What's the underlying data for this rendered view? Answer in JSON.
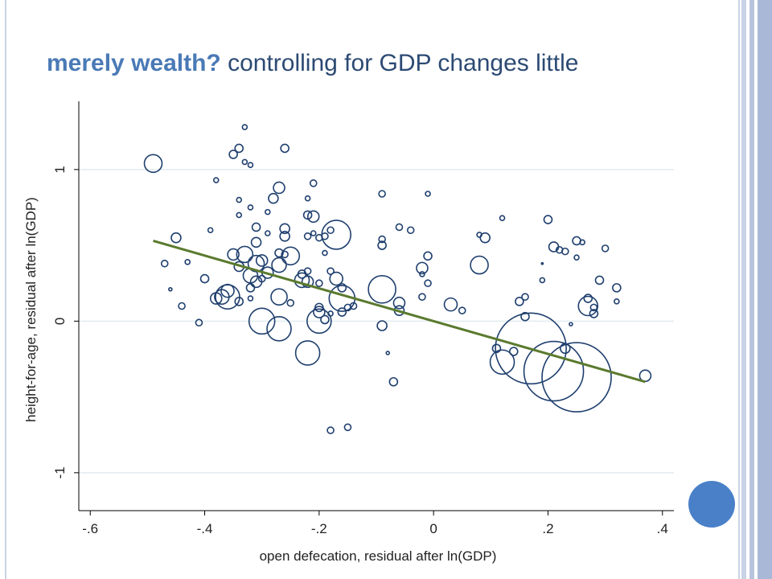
{
  "title": {
    "lead": "merely wealth?",
    "rest": " controlling for GDP changes little"
  },
  "colors": {
    "title_lead": "#4a7ab6",
    "title_rest": "#2c4a73",
    "marker": "#1f3f6e",
    "fit_line": "#5a7a2e",
    "grid": "#e3ecef",
    "accent_circle": "#4a80c8"
  },
  "chart_data": {
    "type": "scatter",
    "xlabel": "open defecation, residual after ln(GDP)",
    "ylabel": "height-for-age, residual after ln(GDP)",
    "xlim": [
      -0.62,
      0.42
    ],
    "ylim": [
      -1.25,
      1.45
    ],
    "x_ticks": [
      -0.6,
      -0.4,
      -0.2,
      0,
      0.2,
      0.4
    ],
    "x_tick_labels": [
      "-.6",
      "-.4",
      "-.2",
      "0",
      ".2",
      ".4"
    ],
    "y_ticks": [
      -1,
      0,
      1
    ],
    "y_tick_labels": [
      "-1",
      "0",
      "1"
    ],
    "grid": "horizontal",
    "marker": "hollow circle, sized by weight",
    "fit_line": {
      "x": [
        -0.49,
        0.37
      ],
      "y": [
        0.53,
        -0.4
      ]
    },
    "points": [
      {
        "x": -0.49,
        "y": 1.04,
        "s": 11
      },
      {
        "x": -0.47,
        "y": 0.38,
        "s": 4
      },
      {
        "x": -0.46,
        "y": 0.21,
        "s": 2
      },
      {
        "x": -0.45,
        "y": 0.55,
        "s": 6
      },
      {
        "x": -0.44,
        "y": 0.1,
        "s": 4
      },
      {
        "x": -0.43,
        "y": 0.39,
        "s": 3
      },
      {
        "x": -0.41,
        "y": -0.01,
        "s": 4
      },
      {
        "x": -0.4,
        "y": 0.28,
        "s": 5
      },
      {
        "x": -0.39,
        "y": 0.6,
        "s": 3
      },
      {
        "x": -0.38,
        "y": 0.15,
        "s": 7
      },
      {
        "x": -0.38,
        "y": 0.93,
        "s": 3
      },
      {
        "x": -0.37,
        "y": 0.16,
        "s": 9
      },
      {
        "x": -0.36,
        "y": 0.16,
        "s": 15
      },
      {
        "x": -0.36,
        "y": 0.2,
        "s": 8
      },
      {
        "x": -0.35,
        "y": 1.1,
        "s": 5
      },
      {
        "x": -0.35,
        "y": 0.44,
        "s": 7
      },
      {
        "x": -0.34,
        "y": 1.14,
        "s": 5
      },
      {
        "x": -0.34,
        "y": 0.36,
        "s": 6
      },
      {
        "x": -0.34,
        "y": 0.13,
        "s": 5
      },
      {
        "x": -0.34,
        "y": 0.7,
        "s": 3
      },
      {
        "x": -0.34,
        "y": 0.8,
        "s": 3
      },
      {
        "x": -0.33,
        "y": 1.28,
        "s": 3
      },
      {
        "x": -0.33,
        "y": 1.05,
        "s": 3
      },
      {
        "x": -0.33,
        "y": 0.44,
        "s": 10
      },
      {
        "x": -0.32,
        "y": 0.3,
        "s": 9
      },
      {
        "x": -0.32,
        "y": 0.22,
        "s": 5
      },
      {
        "x": -0.32,
        "y": 0.15,
        "s": 3
      },
      {
        "x": -0.32,
        "y": 1.03,
        "s": 3
      },
      {
        "x": -0.32,
        "y": 0.75,
        "s": 3
      },
      {
        "x": -0.31,
        "y": 0.62,
        "s": 5
      },
      {
        "x": -0.31,
        "y": 0.52,
        "s": 6
      },
      {
        "x": -0.31,
        "y": 0.38,
        "s": 10
      },
      {
        "x": -0.31,
        "y": 0.26,
        "s": 7
      },
      {
        "x": -0.3,
        "y": 0.4,
        "s": 7
      },
      {
        "x": -0.3,
        "y": 0.28,
        "s": 4
      },
      {
        "x": -0.3,
        "y": 0.0,
        "s": 16
      },
      {
        "x": -0.29,
        "y": 0.32,
        "s": 7
      },
      {
        "x": -0.29,
        "y": 0.58,
        "s": 3
      },
      {
        "x": -0.29,
        "y": 0.72,
        "s": 3
      },
      {
        "x": -0.28,
        "y": 0.81,
        "s": 6
      },
      {
        "x": -0.27,
        "y": 0.88,
        "s": 7
      },
      {
        "x": -0.27,
        "y": 0.45,
        "s": 5
      },
      {
        "x": -0.27,
        "y": 0.37,
        "s": 9
      },
      {
        "x": -0.27,
        "y": 0.16,
        "s": 10
      },
      {
        "x": -0.27,
        "y": -0.05,
        "s": 15
      },
      {
        "x": -0.26,
        "y": 1.14,
        "s": 5
      },
      {
        "x": -0.26,
        "y": 0.61,
        "s": 6
      },
      {
        "x": -0.26,
        "y": 0.44,
        "s": 4
      },
      {
        "x": -0.26,
        "y": 0.56,
        "s": 6
      },
      {
        "x": -0.25,
        "y": 0.43,
        "s": 11
      },
      {
        "x": -0.25,
        "y": 0.12,
        "s": 4
      },
      {
        "x": -0.23,
        "y": 0.27,
        "s": 9
      },
      {
        "x": -0.23,
        "y": 0.31,
        "s": 5
      },
      {
        "x": -0.22,
        "y": -0.21,
        "s": 15
      },
      {
        "x": -0.22,
        "y": 0.26,
        "s": 7
      },
      {
        "x": -0.22,
        "y": 0.33,
        "s": 4
      },
      {
        "x": -0.22,
        "y": 0.7,
        "s": 5
      },
      {
        "x": -0.22,
        "y": 0.56,
        "s": 4
      },
      {
        "x": -0.22,
        "y": 0.81,
        "s": 3
      },
      {
        "x": -0.21,
        "y": 0.69,
        "s": 7
      },
      {
        "x": -0.21,
        "y": 0.91,
        "s": 4
      },
      {
        "x": -0.21,
        "y": 0.58,
        "s": 3
      },
      {
        "x": -0.2,
        "y": 0.55,
        "s": 4
      },
      {
        "x": -0.2,
        "y": 0.25,
        "s": 4
      },
      {
        "x": -0.2,
        "y": 0.0,
        "s": 15
      },
      {
        "x": -0.2,
        "y": 0.06,
        "s": 7
      },
      {
        "x": -0.2,
        "y": 0.09,
        "s": 5
      },
      {
        "x": -0.19,
        "y": 0.01,
        "s": 5
      },
      {
        "x": -0.19,
        "y": 0.56,
        "s": 4
      },
      {
        "x": -0.19,
        "y": 0.45,
        "s": 3
      },
      {
        "x": -0.18,
        "y": -0.72,
        "s": 4
      },
      {
        "x": -0.18,
        "y": 0.6,
        "s": 4
      },
      {
        "x": -0.18,
        "y": 0.33,
        "s": 4
      },
      {
        "x": -0.18,
        "y": 0.05,
        "s": 3
      },
      {
        "x": -0.17,
        "y": 0.57,
        "s": 18
      },
      {
        "x": -0.17,
        "y": 0.28,
        "s": 8
      },
      {
        "x": -0.16,
        "y": 0.15,
        "s": 16
      },
      {
        "x": -0.16,
        "y": 0.22,
        "s": 5
      },
      {
        "x": -0.16,
        "y": 0.06,
        "s": 5
      },
      {
        "x": -0.15,
        "y": -0.7,
        "s": 4
      },
      {
        "x": -0.15,
        "y": 0.09,
        "s": 4
      },
      {
        "x": -0.14,
        "y": 0.1,
        "s": 4
      },
      {
        "x": -0.09,
        "y": 0.54,
        "s": 4
      },
      {
        "x": -0.09,
        "y": -0.03,
        "s": 6
      },
      {
        "x": -0.09,
        "y": 0.84,
        "s": 4
      },
      {
        "x": -0.09,
        "y": 0.5,
        "s": 5
      },
      {
        "x": -0.09,
        "y": 0.21,
        "s": 17
      },
      {
        "x": -0.08,
        "y": -0.21,
        "s": 2
      },
      {
        "x": -0.07,
        "y": -0.4,
        "s": 5
      },
      {
        "x": -0.06,
        "y": 0.62,
        "s": 4
      },
      {
        "x": -0.06,
        "y": 0.12,
        "s": 7
      },
      {
        "x": -0.06,
        "y": 0.07,
        "s": 6
      },
      {
        "x": -0.04,
        "y": 0.6,
        "s": 4
      },
      {
        "x": -0.02,
        "y": 0.35,
        "s": 7
      },
      {
        "x": -0.02,
        "y": 0.31,
        "s": 3
      },
      {
        "x": -0.02,
        "y": 0.16,
        "s": 4
      },
      {
        "x": -0.01,
        "y": 0.84,
        "s": 3
      },
      {
        "x": -0.01,
        "y": 0.43,
        "s": 5
      },
      {
        "x": -0.01,
        "y": 0.25,
        "s": 4
      },
      {
        "x": 0.03,
        "y": 0.11,
        "s": 8
      },
      {
        "x": 0.05,
        "y": 0.07,
        "s": 4
      },
      {
        "x": 0.08,
        "y": 0.37,
        "s": 11
      },
      {
        "x": 0.08,
        "y": 0.57,
        "s": 3
      },
      {
        "x": 0.09,
        "y": 0.55,
        "s": 6
      },
      {
        "x": 0.11,
        "y": -0.18,
        "s": 5
      },
      {
        "x": 0.12,
        "y": -0.27,
        "s": 15
      },
      {
        "x": 0.12,
        "y": 0.68,
        "s": 3
      },
      {
        "x": 0.14,
        "y": -0.2,
        "s": 5
      },
      {
        "x": 0.15,
        "y": 0.13,
        "s": 5
      },
      {
        "x": 0.16,
        "y": 0.16,
        "s": 4
      },
      {
        "x": 0.16,
        "y": 0.03,
        "s": 5
      },
      {
        "x": 0.17,
        "y": -0.18,
        "s": 44
      },
      {
        "x": 0.19,
        "y": 0.38,
        "s": 1
      },
      {
        "x": 0.19,
        "y": 0.27,
        "s": 3
      },
      {
        "x": 0.2,
        "y": 0.67,
        "s": 5
      },
      {
        "x": 0.21,
        "y": 0.49,
        "s": 6
      },
      {
        "x": 0.21,
        "y": -0.33,
        "s": 37
      },
      {
        "x": 0.22,
        "y": 0.47,
        "s": 4
      },
      {
        "x": 0.23,
        "y": 0.46,
        "s": 4
      },
      {
        "x": 0.23,
        "y": -0.18,
        "s": 6
      },
      {
        "x": 0.24,
        "y": -0.02,
        "s": 2
      },
      {
        "x": 0.25,
        "y": -0.37,
        "s": 43
      },
      {
        "x": 0.25,
        "y": 0.42,
        "s": 3
      },
      {
        "x": 0.25,
        "y": 0.53,
        "s": 5
      },
      {
        "x": 0.26,
        "y": 0.52,
        "s": 3
      },
      {
        "x": 0.27,
        "y": 0.1,
        "s": 12
      },
      {
        "x": 0.27,
        "y": 0.15,
        "s": 5
      },
      {
        "x": 0.28,
        "y": 0.05,
        "s": 5
      },
      {
        "x": 0.28,
        "y": 0.09,
        "s": 4
      },
      {
        "x": 0.29,
        "y": 0.27,
        "s": 5
      },
      {
        "x": 0.3,
        "y": 0.48,
        "s": 4
      },
      {
        "x": 0.32,
        "y": 0.22,
        "s": 5
      },
      {
        "x": 0.32,
        "y": 0.13,
        "s": 3
      },
      {
        "x": 0.37,
        "y": -0.36,
        "s": 7
      }
    ]
  }
}
